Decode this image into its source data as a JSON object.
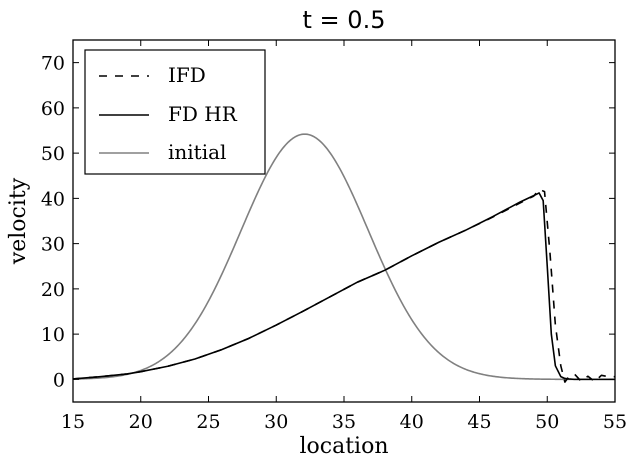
{
  "chart_data": {
    "type": "line",
    "title": "t = 0.5",
    "xlabel": "location",
    "ylabel": "velocity",
    "xlim": [
      15,
      55
    ],
    "ylim": [
      -5,
      75
    ],
    "xticks": [
      15,
      20,
      25,
      30,
      35,
      40,
      45,
      50,
      55
    ],
    "yticks": [
      0,
      10,
      20,
      30,
      40,
      50,
      60,
      70
    ],
    "grid": false,
    "legend_position": "top-left",
    "series": [
      {
        "name": "IFD",
        "style": "dashed",
        "color": "#000000",
        "x": [
          15,
          17,
          19,
          20,
          22,
          24,
          26,
          28,
          30,
          32,
          34,
          36,
          38,
          40,
          42,
          44,
          46,
          48,
          49,
          49.4,
          49.8,
          50.2,
          50.6,
          51,
          51.3,
          51.6,
          52,
          52.5,
          53,
          53.5,
          54,
          54.5,
          55
        ],
        "y": [
          0.1,
          0.6,
          1.2,
          1.7,
          2.9,
          4.5,
          6.6,
          9.1,
          12.0,
          15.1,
          18.3,
          21.5,
          24.1,
          27.3,
          30.3,
          33.0,
          35.9,
          39.0,
          40.5,
          42.0,
          41.5,
          28.0,
          12.0,
          3.0,
          -0.6,
          0.6,
          1.2,
          -0.4,
          0.7,
          -0.5,
          0.9,
          0.6,
          0.6
        ]
      },
      {
        "name": "FD HR",
        "style": "solid",
        "color": "#000000",
        "x": [
          15,
          17,
          19,
          20,
          22,
          24,
          26,
          28,
          30,
          32,
          34,
          36,
          38,
          40,
          42,
          44,
          46,
          48,
          49,
          49.4,
          49.7,
          50,
          50.3,
          50.6,
          51,
          51.3,
          51.6,
          52,
          53,
          54,
          55
        ],
        "y": [
          0.1,
          0.6,
          1.2,
          1.7,
          2.9,
          4.5,
          6.6,
          9.1,
          12.0,
          15.1,
          18.3,
          21.5,
          24.1,
          27.3,
          30.3,
          33.0,
          36.0,
          39.2,
          40.6,
          41.2,
          39.5,
          25.0,
          10.0,
          3.0,
          0.6,
          0.2,
          0.1,
          0.0,
          0.0,
          0.0,
          0.0
        ]
      },
      {
        "name": "initial",
        "style": "solid",
        "color": "#808080",
        "type": "gaussian",
        "peak": 54.2,
        "center": 32.1,
        "sigma": 4.7,
        "x_range": [
          15,
          55
        ]
      }
    ]
  }
}
